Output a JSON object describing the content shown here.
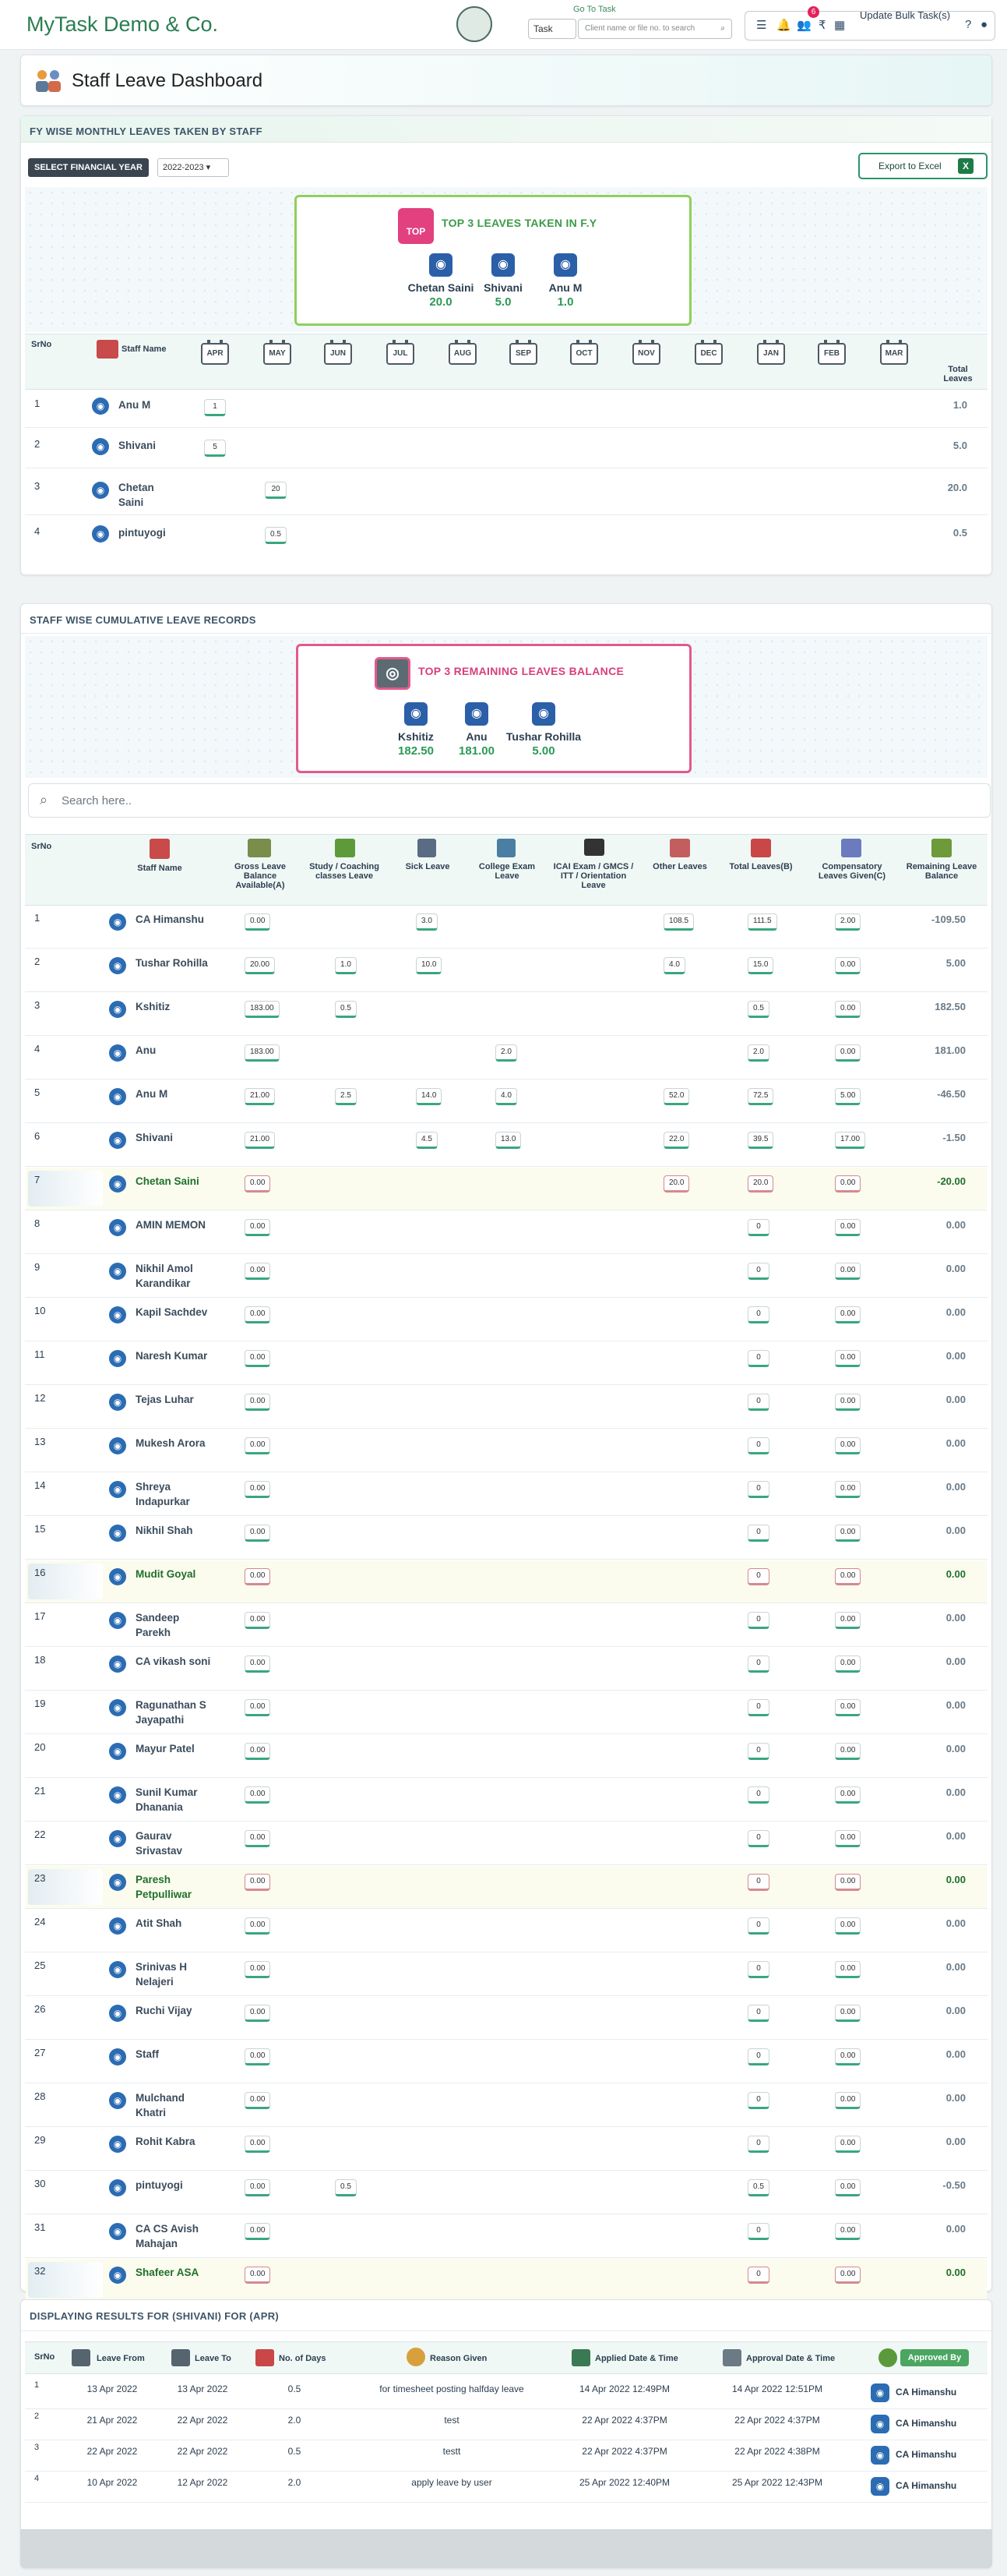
{
  "header": {
    "brand": "MyTask Demo & Co.",
    "go_to_task_label": "Go To Task",
    "task_select": "Task",
    "task_search_placeholder": "Client name or file no. to search",
    "notification_count": "6",
    "update_bulk_label": "Update Bulk Task(s)"
  },
  "page": {
    "title": "Staff Leave Dashboard"
  },
  "fy_section": {
    "heading": "FY WISE MONTHLY LEAVES TAKEN BY STAFF",
    "fy_label": "SELECT FINANCIAL YEAR",
    "fy_value": "2022-2023",
    "export_label": "Export to Excel",
    "top3": {
      "badge": "TOP",
      "title": "TOP 3 LEAVES TAKEN IN F.Y",
      "people": [
        {
          "name": "Chetan Saini",
          "value": "20.0"
        },
        {
          "name": "Shivani",
          "value": "5.0"
        },
        {
          "name": "Anu M",
          "value": "1.0"
        }
      ]
    },
    "columns": {
      "srno": "SrNo",
      "staff": "Staff Name",
      "months": [
        "APR",
        "MAY",
        "JUN",
        "JUL",
        "AUG",
        "SEP",
        "OCT",
        "NOV",
        "DEC",
        "JAN",
        "FEB",
        "MAR"
      ],
      "total": "Total Leaves"
    },
    "rows": [
      {
        "sr": "1",
        "name": "Anu M",
        "apr": "1",
        "may": "",
        "total": "1.0"
      },
      {
        "sr": "2",
        "name": "Shivani",
        "apr": "5",
        "may": "",
        "total": "5.0"
      },
      {
        "sr": "3",
        "name": "Chetan Saini",
        "apr": "",
        "may": "20",
        "total": "20.0"
      },
      {
        "sr": "4",
        "name": "pintuyogi",
        "apr": "",
        "may": "0.5",
        "total": "0.5"
      }
    ]
  },
  "cum_section": {
    "heading": "STAFF WISE CUMULATIVE LEAVE RECORDS",
    "top3": {
      "title": "TOP 3 REMAINING LEAVES BALANCE",
      "people": [
        {
          "name": "Kshitiz",
          "value": "182.50"
        },
        {
          "name": "Anu",
          "value": "181.00"
        },
        {
          "name": "Tushar Rohilla",
          "value": "5.00"
        }
      ]
    },
    "search_placeholder": "Search here..",
    "columns": {
      "srno": "SrNo",
      "staff": "Staff Name",
      "gross": "Gross Leave Balance Available(A)",
      "study": "Study / Coaching classes Leave",
      "sick": "Sick Leave",
      "college": "College Exam Leave",
      "icai": "ICAI Exam / GMCS / ITT / Orientation Leave",
      "other": "Other Leaves",
      "total": "Total Leaves(B)",
      "comp": "Compensatory Leaves Given(C)",
      "remaining": "Remaining Leave Balance"
    },
    "rows": [
      {
        "sr": "1",
        "name": "CA Himanshu",
        "gross": "0.00",
        "study": "",
        "sick": "3.0",
        "college": "",
        "other": "108.5",
        "total": "111.5",
        "comp": "2.00",
        "rem": "-109.50",
        "hl": false
      },
      {
        "sr": "2",
        "name": "Tushar Rohilla",
        "gross": "20.00",
        "study": "1.0",
        "sick": "10.0",
        "college": "",
        "other": "4.0",
        "total": "15.0",
        "comp": "0.00",
        "rem": "5.00",
        "hl": false
      },
      {
        "sr": "3",
        "name": "Kshitiz",
        "gross": "183.00",
        "study": "0.5",
        "sick": "",
        "college": "",
        "other": "",
        "total": "0.5",
        "comp": "0.00",
        "rem": "182.50",
        "hl": false
      },
      {
        "sr": "4",
        "name": "Anu",
        "gross": "183.00",
        "study": "",
        "sick": "",
        "college": "2.0",
        "other": "",
        "total": "2.0",
        "comp": "0.00",
        "rem": "181.00",
        "hl": false
      },
      {
        "sr": "5",
        "name": "Anu M",
        "gross": "21.00",
        "study": "2.5",
        "sick": "14.0",
        "college": "4.0",
        "other": "52.0",
        "total": "72.5",
        "comp": "5.00",
        "rem": "-46.50",
        "hl": false
      },
      {
        "sr": "6",
        "name": "Shivani",
        "gross": "21.00",
        "study": "",
        "sick": "4.5",
        "college": "13.0",
        "other": "22.0",
        "total": "39.5",
        "comp": "17.00",
        "rem": "-1.50",
        "hl": false
      },
      {
        "sr": "7",
        "name": "Chetan Saini",
        "gross": "0.00",
        "study": "",
        "sick": "",
        "college": "",
        "other": "20.0",
        "total": "20.0",
        "comp": "0.00",
        "rem": "-20.00",
        "hl": true
      },
      {
        "sr": "8",
        "name": "AMIN MEMON",
        "gross": "0.00",
        "study": "",
        "sick": "",
        "college": "",
        "other": "",
        "total": "0",
        "comp": "0.00",
        "rem": "0.00",
        "hl": false
      },
      {
        "sr": "9",
        "name": "Nikhil Amol Karandikar",
        "gross": "0.00",
        "study": "",
        "sick": "",
        "college": "",
        "other": "",
        "total": "0",
        "comp": "0.00",
        "rem": "0.00",
        "hl": false
      },
      {
        "sr": "10",
        "name": "Kapil Sachdev",
        "gross": "0.00",
        "study": "",
        "sick": "",
        "college": "",
        "other": "",
        "total": "0",
        "comp": "0.00",
        "rem": "0.00",
        "hl": false
      },
      {
        "sr": "11",
        "name": "Naresh Kumar",
        "gross": "0.00",
        "study": "",
        "sick": "",
        "college": "",
        "other": "",
        "total": "0",
        "comp": "0.00",
        "rem": "0.00",
        "hl": false
      },
      {
        "sr": "12",
        "name": "Tejas Luhar",
        "gross": "0.00",
        "study": "",
        "sick": "",
        "college": "",
        "other": "",
        "total": "0",
        "comp": "0.00",
        "rem": "0.00",
        "hl": false
      },
      {
        "sr": "13",
        "name": "Mukesh Arora",
        "gross": "0.00",
        "study": "",
        "sick": "",
        "college": "",
        "other": "",
        "total": "0",
        "comp": "0.00",
        "rem": "0.00",
        "hl": false
      },
      {
        "sr": "14",
        "name": "Shreya Indapurkar",
        "gross": "0.00",
        "study": "",
        "sick": "",
        "college": "",
        "other": "",
        "total": "0",
        "comp": "0.00",
        "rem": "0.00",
        "hl": false
      },
      {
        "sr": "15",
        "name": "Nikhil Shah",
        "gross": "0.00",
        "study": "",
        "sick": "",
        "college": "",
        "other": "",
        "total": "0",
        "comp": "0.00",
        "rem": "0.00",
        "hl": false
      },
      {
        "sr": "16",
        "name": "Mudit Goyal",
        "gross": "0.00",
        "study": "",
        "sick": "",
        "college": "",
        "other": "",
        "total": "0",
        "comp": "0.00",
        "rem": "0.00",
        "hl": true
      },
      {
        "sr": "17",
        "name": "Sandeep Parekh",
        "gross": "0.00",
        "study": "",
        "sick": "",
        "college": "",
        "other": "",
        "total": "0",
        "comp": "0.00",
        "rem": "0.00",
        "hl": false
      },
      {
        "sr": "18",
        "name": "CA vikash soni",
        "gross": "0.00",
        "study": "",
        "sick": "",
        "college": "",
        "other": "",
        "total": "0",
        "comp": "0.00",
        "rem": "0.00",
        "hl": false
      },
      {
        "sr": "19",
        "name": "Ragunathan S Jayapathi",
        "gross": "0.00",
        "study": "",
        "sick": "",
        "college": "",
        "other": "",
        "total": "0",
        "comp": "0.00",
        "rem": "0.00",
        "hl": false
      },
      {
        "sr": "20",
        "name": "Mayur Patel",
        "gross": "0.00",
        "study": "",
        "sick": "",
        "college": "",
        "other": "",
        "total": "0",
        "comp": "0.00",
        "rem": "0.00",
        "hl": false
      },
      {
        "sr": "21",
        "name": "Sunil Kumar Dhanania",
        "gross": "0.00",
        "study": "",
        "sick": "",
        "college": "",
        "other": "",
        "total": "0",
        "comp": "0.00",
        "rem": "0.00",
        "hl": false
      },
      {
        "sr": "22",
        "name": "Gaurav Srivastav",
        "gross": "0.00",
        "study": "",
        "sick": "",
        "college": "",
        "other": "",
        "total": "0",
        "comp": "0.00",
        "rem": "0.00",
        "hl": false
      },
      {
        "sr": "23",
        "name": "Paresh Petpulliwar",
        "gross": "0.00",
        "study": "",
        "sick": "",
        "college": "",
        "other": "",
        "total": "0",
        "comp": "0.00",
        "rem": "0.00",
        "hl": true
      },
      {
        "sr": "24",
        "name": "Atit Shah",
        "gross": "0.00",
        "study": "",
        "sick": "",
        "college": "",
        "other": "",
        "total": "0",
        "comp": "0.00",
        "rem": "0.00",
        "hl": false
      },
      {
        "sr": "25",
        "name": "Srinivas H Nelajeri",
        "gross": "0.00",
        "study": "",
        "sick": "",
        "college": "",
        "other": "",
        "total": "0",
        "comp": "0.00",
        "rem": "0.00",
        "hl": false
      },
      {
        "sr": "26",
        "name": "Ruchi Vijay",
        "gross": "0.00",
        "study": "",
        "sick": "",
        "college": "",
        "other": "",
        "total": "0",
        "comp": "0.00",
        "rem": "0.00",
        "hl": false
      },
      {
        "sr": "27",
        "name": "Staff",
        "gross": "0.00",
        "study": "",
        "sick": "",
        "college": "",
        "other": "",
        "total": "0",
        "comp": "0.00",
        "rem": "0.00",
        "hl": false
      },
      {
        "sr": "28",
        "name": "Mulchand Khatri",
        "gross": "0.00",
        "study": "",
        "sick": "",
        "college": "",
        "other": "",
        "total": "0",
        "comp": "0.00",
        "rem": "0.00",
        "hl": false
      },
      {
        "sr": "29",
        "name": "Rohit Kabra",
        "gross": "0.00",
        "study": "",
        "sick": "",
        "college": "",
        "other": "",
        "total": "0",
        "comp": "0.00",
        "rem": "0.00",
        "hl": false
      },
      {
        "sr": "30",
        "name": "pintuyogi",
        "gross": "0.00",
        "study": "0.5",
        "sick": "",
        "college": "",
        "other": "",
        "total": "0.5",
        "comp": "0.00",
        "rem": "-0.50",
        "hl": false
      },
      {
        "sr": "31",
        "name": "CA CS Avish Mahajan",
        "gross": "0.00",
        "study": "",
        "sick": "",
        "college": "",
        "other": "",
        "total": "0",
        "comp": "0.00",
        "rem": "0.00",
        "hl": false
      },
      {
        "sr": "32",
        "name": "Shafeer ASA",
        "gross": "0.00",
        "study": "",
        "sick": "",
        "college": "",
        "other": "",
        "total": "0",
        "comp": "0.00",
        "rem": "0.00",
        "hl": true
      }
    ]
  },
  "results_section": {
    "heading": "DISPLAYING RESULTS FOR (SHIVANI) FOR (APR)",
    "columns": {
      "srno": "SrNo",
      "from": "Leave From",
      "to": "Leave To",
      "days": "No. of Days",
      "reason": "Reason Given",
      "applied": "Applied Date & Time",
      "approval": "Approval Date & Time",
      "approved_by": "Approved By"
    },
    "rows": [
      {
        "sr": "1",
        "from": "13 Apr 2022",
        "to": "13 Apr 2022",
        "days": "0.5",
        "reason": "for timesheet posting halfday leave",
        "applied": "14 Apr 2022 12:49PM",
        "approval": "14 Apr 2022 12:51PM",
        "by": "CA Himanshu"
      },
      {
        "sr": "2",
        "from": "21 Apr 2022",
        "to": "22 Apr 2022",
        "days": "2.0",
        "reason": "test",
        "applied": "22 Apr 2022 4:37PM",
        "approval": "22 Apr 2022 4:37PM",
        "by": "CA Himanshu"
      },
      {
        "sr": "3",
        "from": "22 Apr 2022",
        "to": "22 Apr 2022",
        "days": "0.5",
        "reason": "testt",
        "applied": "22 Apr 2022 4:37PM",
        "approval": "22 Apr 2022 4:38PM",
        "by": "CA Himanshu"
      },
      {
        "sr": "4",
        "from": "10 Apr 2022",
        "to": "12 Apr 2022",
        "days": "2.0",
        "reason": "apply leave by user",
        "applied": "25 Apr 2022 12:40PM",
        "approval": "25 Apr 2022 12:43PM",
        "by": "CA Himanshu"
      }
    ]
  }
}
